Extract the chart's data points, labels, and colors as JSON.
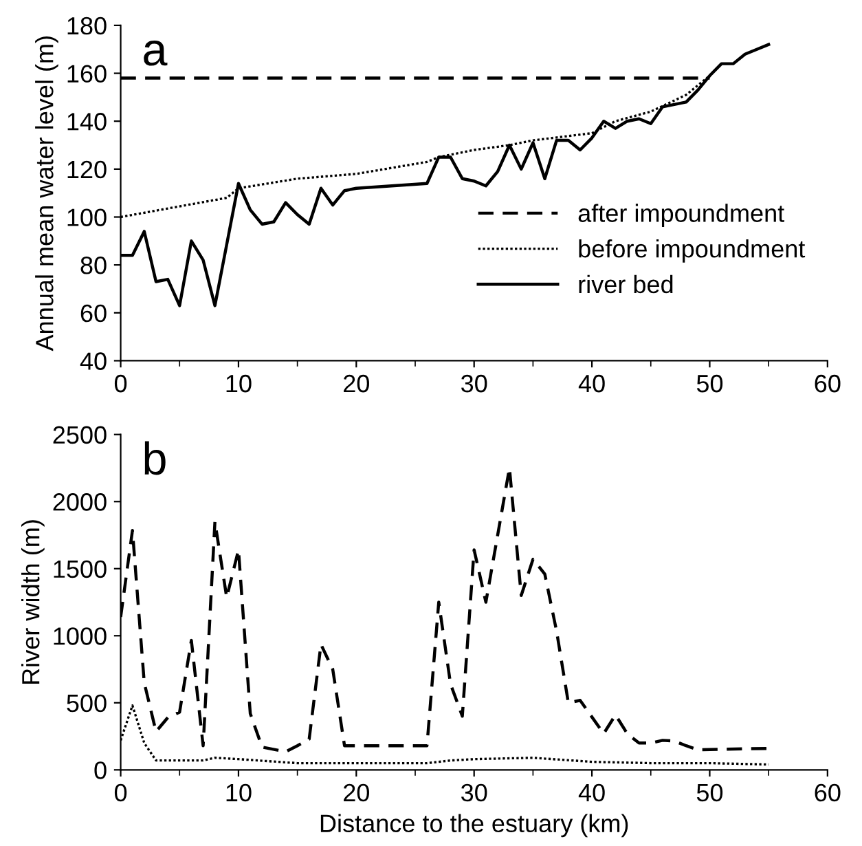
{
  "chart_data": [
    {
      "type": "line",
      "title": "a",
      "ylabel": "Annual mean water level (m)",
      "xlim": [
        0,
        60
      ],
      "ylim": [
        40,
        180
      ],
      "xticks": [
        0,
        {
          "value": 5,
          "label": null
        },
        10,
        {
          "value": 15,
          "label": null
        },
        20,
        {
          "value": 25,
          "label": null
        },
        30,
        {
          "value": 35,
          "label": null
        },
        40,
        {
          "value": 45,
          "label": null
        },
        50,
        {
          "value": 55,
          "label": null
        },
        60
      ],
      "yticks": [
        40,
        60,
        80,
        100,
        120,
        140,
        160,
        180
      ],
      "grid": false,
      "legend": "bottom right",
      "series": [
        {
          "name": "after impoundment",
          "color": "#000000",
          "line_style": "dashed",
          "x": [
            0,
            50
          ],
          "values": [
            158,
            158
          ]
        },
        {
          "name": "before impoundment",
          "color": "#000000",
          "line_style": "dotted",
          "x": [
            0,
            9,
            10,
            15,
            20,
            26,
            27,
            30,
            33,
            35,
            40,
            42,
            45,
            48,
            50
          ],
          "values": [
            100,
            108,
            112,
            116,
            118,
            123,
            125,
            128,
            130,
            132,
            135,
            140,
            144,
            151,
            159
          ]
        },
        {
          "name": "river bed",
          "color": "#000000",
          "line_style": "solid",
          "x": [
            0,
            1,
            2,
            3,
            4,
            5,
            6,
            7,
            8,
            10,
            11,
            12,
            13,
            14,
            15,
            16,
            17,
            18,
            19,
            20,
            26,
            27,
            28,
            29,
            30,
            31,
            32,
            33,
            34,
            35,
            36,
            37,
            38,
            39,
            40,
            41,
            42,
            43,
            44,
            45,
            46,
            47,
            48,
            49,
            50,
            51,
            52,
            53,
            54,
            55
          ],
          "values": [
            84,
            84,
            94,
            73,
            74,
            63,
            90,
            82,
            63,
            114,
            103,
            97,
            98,
            106,
            101,
            97,
            112,
            105,
            111,
            112,
            114,
            125,
            125,
            116,
            115,
            113,
            119,
            130,
            120,
            131,
            116,
            132,
            132,
            128,
            133,
            140,
            137,
            140,
            141,
            139,
            146,
            147,
            148,
            153,
            159,
            164,
            164,
            168,
            170,
            172
          ]
        }
      ]
    },
    {
      "type": "line",
      "title": "b",
      "xlabel": "Distance to the estuary (km)",
      "ylabel": "River width (m)",
      "xlim": [
        0,
        60
      ],
      "ylim": [
        0,
        2500
      ],
      "xticks": [
        0,
        {
          "value": 5,
          "label": null
        },
        10,
        {
          "value": 15,
          "label": null
        },
        20,
        {
          "value": 25,
          "label": null
        },
        30,
        {
          "value": 35,
          "label": null
        },
        40,
        {
          "value": 45,
          "label": null
        },
        50,
        {
          "value": 55,
          "label": null
        },
        60
      ],
      "yticks": [
        0,
        500,
        1000,
        1500,
        2000,
        2500
      ],
      "grid": false,
      "legend": false,
      "series": [
        {
          "color": "#000000",
          "line_style": "dashed",
          "x": [
            0,
            1,
            2,
            3,
            4,
            5,
            6,
            7,
            8,
            9,
            10,
            11,
            12,
            14,
            15,
            16,
            17,
            18,
            19,
            26,
            27,
            28,
            29,
            30,
            31,
            32,
            33,
            34,
            35,
            36,
            37,
            38,
            39,
            41,
            42,
            43,
            44,
            45,
            46,
            47,
            48,
            49,
            55
          ],
          "values": [
            1140,
            1785,
            650,
            285,
            390,
            430,
            965,
            180,
            1850,
            1285,
            1640,
            420,
            170,
            135,
            180,
            230,
            935,
            750,
            180,
            180,
            1250,
            640,
            400,
            1640,
            1250,
            1750,
            2250,
            1300,
            1570,
            1460,
            1035,
            500,
            518,
            270,
            410,
            270,
            200,
            200,
            220,
            215,
            180,
            150,
            160
          ]
        },
        {
          "color": "#000000",
          "line_style": "dotted",
          "x": [
            0,
            1,
            2,
            3,
            5,
            7,
            8,
            10,
            15,
            20,
            26,
            28,
            30,
            35,
            40,
            45,
            50,
            55
          ],
          "values": [
            220,
            480,
            200,
            70,
            70,
            70,
            90,
            80,
            50,
            50,
            50,
            70,
            80,
            90,
            60,
            50,
            50,
            40
          ]
        }
      ]
    }
  ]
}
